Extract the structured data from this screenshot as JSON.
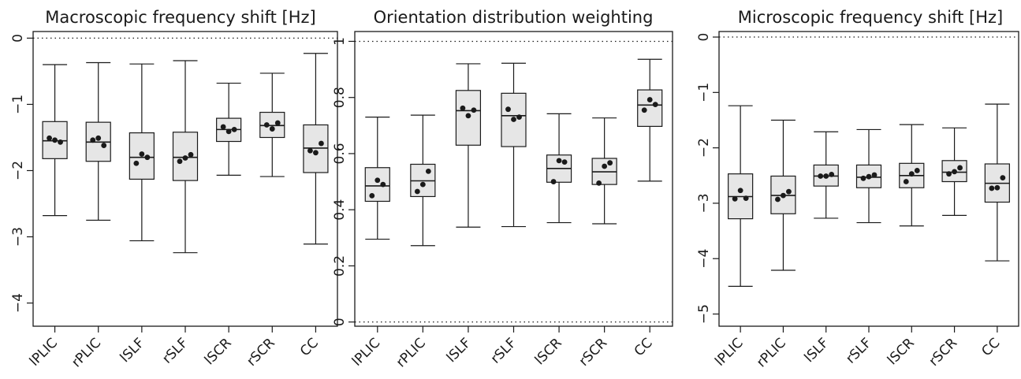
{
  "chart_data": [
    {
      "type": "box",
      "title": "Macroscopic frequency shift [Hz]",
      "categories": [
        "lPLIC",
        "rPLIC",
        "lSLF",
        "rSLF",
        "lSCR",
        "rSCR",
        "CC"
      ],
      "ylim": [
        -4.35,
        0.1
      ],
      "yticks": [
        0,
        -1,
        -2,
        -3,
        -4
      ],
      "ytick_labels": [
        "0",
        "−1",
        "−2",
        "−3",
        "−4"
      ],
      "reference_lines": [
        0
      ],
      "boxes": [
        {
          "whisker_low": -2.68,
          "q1": -1.82,
          "median": -1.55,
          "q3": -1.26,
          "whisker_high": -0.4,
          "points": [
            -1.51,
            -1.54,
            -1.57
          ]
        },
        {
          "whisker_low": -2.75,
          "q1": -1.86,
          "median": -1.57,
          "q3": -1.27,
          "whisker_high": -0.37,
          "points": [
            -1.54,
            -1.51,
            -1.62
          ]
        },
        {
          "whisker_low": -3.06,
          "q1": -2.13,
          "median": -1.8,
          "q3": -1.43,
          "whisker_high": -0.39,
          "points": [
            -1.89,
            -1.75,
            -1.8
          ]
        },
        {
          "whisker_low": -3.24,
          "q1": -2.15,
          "median": -1.8,
          "q3": -1.42,
          "whisker_high": -0.34,
          "points": [
            -1.86,
            -1.81,
            -1.76
          ]
        },
        {
          "whisker_low": -2.07,
          "q1": -1.56,
          "median": -1.38,
          "q3": -1.21,
          "whisker_high": -0.68,
          "points": [
            -1.34,
            -1.41,
            -1.38
          ]
        },
        {
          "whisker_low": -2.09,
          "q1": -1.5,
          "median": -1.32,
          "q3": -1.12,
          "whisker_high": -0.53,
          "points": [
            -1.31,
            -1.37,
            -1.28
          ]
        },
        {
          "whisker_low": -3.11,
          "q1": -2.03,
          "median": -1.66,
          "q3": -1.31,
          "whisker_high": -0.23,
          "points": [
            -1.7,
            -1.73,
            -1.59
          ]
        }
      ]
    },
    {
      "type": "box",
      "title": "Orientation distribution weighting",
      "categories": [
        "lPLIC",
        "rPLIC",
        "lSLF",
        "rSLF",
        "lSCR",
        "rSCR",
        "CC"
      ],
      "ylim": [
        -0.015,
        1.035
      ],
      "yticks": [
        0,
        0.2,
        0.4,
        0.6,
        0.8,
        1
      ],
      "ytick_labels": [
        "0",
        "0.2",
        "0.4",
        "0.6",
        "0.8",
        "1"
      ],
      "reference_lines": [
        0,
        1
      ],
      "boxes": [
        {
          "whisker_low": 0.295,
          "q1": 0.43,
          "median": 0.485,
          "q3": 0.55,
          "whisker_high": 0.73,
          "points": [
            0.45,
            0.505,
            0.49
          ]
        },
        {
          "whisker_low": 0.272,
          "q1": 0.447,
          "median": 0.503,
          "q3": 0.562,
          "whisker_high": 0.737,
          "points": [
            0.465,
            0.49,
            0.537
          ]
        },
        {
          "whisker_low": 0.338,
          "q1": 0.63,
          "median": 0.753,
          "q3": 0.825,
          "whisker_high": 0.92,
          "points": [
            0.762,
            0.735,
            0.755
          ]
        },
        {
          "whisker_low": 0.34,
          "q1": 0.625,
          "median": 0.735,
          "q3": 0.815,
          "whisker_high": 0.922,
          "points": [
            0.758,
            0.722,
            0.73
          ]
        },
        {
          "whisker_low": 0.354,
          "q1": 0.498,
          "median": 0.547,
          "q3": 0.595,
          "whisker_high": 0.742,
          "points": [
            0.5,
            0.575,
            0.57
          ]
        },
        {
          "whisker_low": 0.35,
          "q1": 0.49,
          "median": 0.535,
          "q3": 0.583,
          "whisker_high": 0.727,
          "points": [
            0.495,
            0.555,
            0.567
          ]
        },
        {
          "whisker_low": 0.502,
          "q1": 0.697,
          "median": 0.773,
          "q3": 0.827,
          "whisker_high": 0.936,
          "points": [
            0.755,
            0.792,
            0.775
          ]
        }
      ]
    },
    {
      "type": "box",
      "title": "Microscopic frequency shift [Hz]",
      "categories": [
        "lPLIC",
        "rPLIC",
        "lSLF",
        "rSLF",
        "lSCR",
        "rSCR",
        "CC"
      ],
      "ylim": [
        -5.22,
        0.1
      ],
      "yticks": [
        0,
        -1,
        -2,
        -3,
        -4,
        -5
      ],
      "ytick_labels": [
        "0",
        "−1",
        "−2",
        "−3",
        "−4",
        "−5"
      ],
      "reference_lines": [
        0
      ],
      "boxes": [
        {
          "whisker_low": -4.5,
          "q1": -3.28,
          "median": -2.88,
          "q3": -2.47,
          "whisker_high": -1.24,
          "points": [
            -2.92,
            -2.77,
            -2.91
          ]
        },
        {
          "whisker_low": -4.21,
          "q1": -3.19,
          "median": -2.86,
          "q3": -2.51,
          "whisker_high": -1.5,
          "points": [
            -2.93,
            -2.86,
            -2.79
          ]
        },
        {
          "whisker_low": -3.27,
          "q1": -2.69,
          "median": -2.51,
          "q3": -2.31,
          "whisker_high": -1.71,
          "points": [
            -2.51,
            -2.51,
            -2.48
          ]
        },
        {
          "whisker_low": -3.35,
          "q1": -2.72,
          "median": -2.53,
          "q3": -2.31,
          "whisker_high": -1.67,
          "points": [
            -2.55,
            -2.52,
            -2.49
          ]
        },
        {
          "whisker_low": -3.41,
          "q1": -2.72,
          "median": -2.5,
          "q3": -2.28,
          "whisker_high": -1.58,
          "points": [
            -2.61,
            -2.47,
            -2.41
          ]
        },
        {
          "whisker_low": -3.22,
          "q1": -2.61,
          "median": -2.44,
          "q3": -2.23,
          "whisker_high": -1.64,
          "points": [
            -2.47,
            -2.43,
            -2.36
          ]
        },
        {
          "whisker_low": -4.04,
          "q1": -2.98,
          "median": -2.64,
          "q3": -2.29,
          "whisker_high": -1.21,
          "points": [
            -2.73,
            -2.72,
            -2.54
          ]
        }
      ]
    }
  ],
  "colors": {
    "box_fill": "#e6e6e6",
    "stroke": "#1a1a1a",
    "point": "#1a1a1a"
  }
}
